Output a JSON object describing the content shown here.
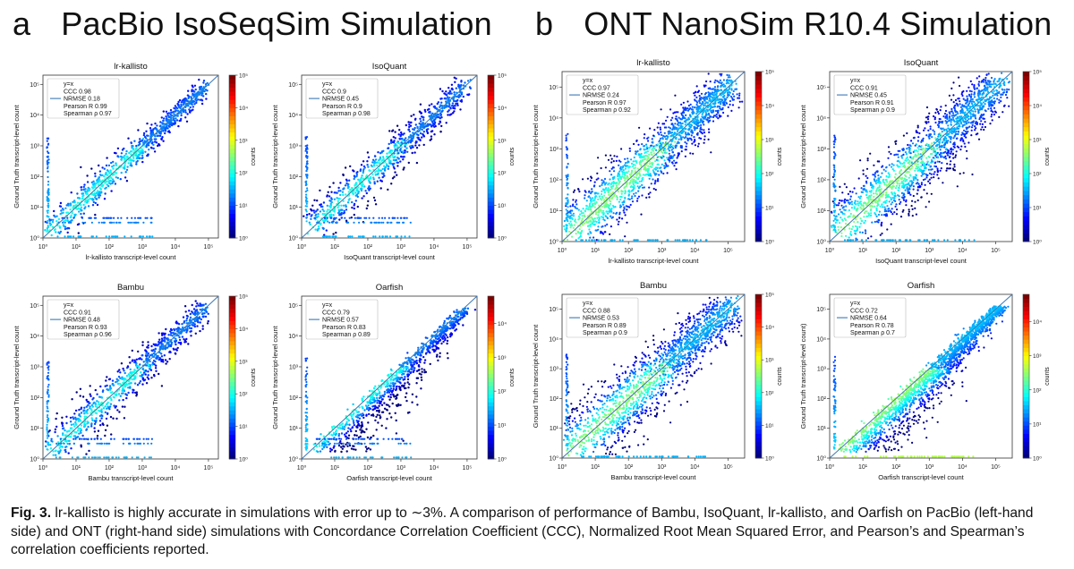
{
  "header": {
    "a": {
      "letter": "a",
      "title": "PacBio IsoSeqSim Simulation"
    },
    "b": {
      "letter": "b",
      "title": "ONT NanoSim R10.4 Simulation"
    }
  },
  "caption": {
    "label": "Fig. 3.",
    "text": " lr-kallisto is highly accurate in simulations with error up to ∼3%. A comparison of performance of Bambu, IsoQuant, lr-kallisto, and Oarfish on PacBio (left-hand side) and ONT (right-hand side) simulations with Concordance Correlation Coefficient (CCC), Normalized Root Mean Squared Error, and Pearson’s and Spearman’s correlation coefficients reported."
  },
  "colors": {
    "identity_line": "#3a78b8",
    "colormap": [
      "#00007f",
      "#0000ff",
      "#007fff",
      "#00ffff",
      "#7fff7f",
      "#ffff00",
      "#ff7f00",
      "#ff0000",
      "#7f0000"
    ]
  },
  "chart_data": [
    {
      "type": "scatter",
      "group": "PacBio IsoSeqSim Simulation",
      "title": "lr-kallisto",
      "xlabel": "lr-kallisto transcript-level count",
      "ylabel": "Ground Truth transcript-level count",
      "xscale": "log",
      "yscale": "log",
      "xlim": [
        0,
        5.3
      ],
      "ylim": [
        0,
        5.3
      ],
      "legend": [
        "y=x",
        "CCC 0.98",
        "NRMSE 0.18",
        "Pearson R 0.99",
        "Spearman ρ 0.97"
      ],
      "colorbar": {
        "label": "counts",
        "ticks": [
          "10⁰",
          "10¹",
          "10²",
          "10³",
          "10⁴",
          "10⁵"
        ],
        "range": [
          0,
          5
        ]
      },
      "xticks": [
        "10⁰",
        "10¹",
        "10²",
        "10³",
        "10⁴",
        "10⁵"
      ],
      "yticks": [
        "10⁰",
        "10¹",
        "10²",
        "10³",
        "10⁴",
        "10⁵"
      ]
    },
    {
      "type": "scatter",
      "group": "PacBio IsoSeqSim Simulation",
      "title": "IsoQuant",
      "xlabel": "IsoQuant transcript-level count",
      "ylabel": "Ground Truth transcript-level count",
      "xscale": "log",
      "yscale": "log",
      "xlim": [
        0,
        5.3
      ],
      "ylim": [
        0,
        5.3
      ],
      "legend": [
        "y=x",
        "CCC 0.9",
        "NRMSE 0.45",
        "Pearson R 0.9",
        "Spearman ρ 0.98"
      ],
      "colorbar": {
        "label": "counts",
        "ticks": [
          "10⁰",
          "10¹",
          "10²",
          "10³",
          "10⁴",
          "10⁵"
        ],
        "range": [
          0,
          5
        ]
      },
      "xticks": [
        "10⁰",
        "10¹",
        "10²",
        "10³",
        "10⁴",
        "10⁵"
      ],
      "yticks": [
        "10⁰",
        "10¹",
        "10²",
        "10³",
        "10⁴",
        "10⁵"
      ]
    },
    {
      "type": "scatter",
      "group": "PacBio IsoSeqSim Simulation",
      "title": "Bambu",
      "xlabel": "Bambu transcript-level count",
      "ylabel": "Ground Truth transcript-level count",
      "xscale": "log",
      "yscale": "log",
      "xlim": [
        0,
        5.3
      ],
      "ylim": [
        0,
        5.3
      ],
      "legend": [
        "y=x",
        "CCC 0.91",
        "NRMSE 0.48",
        "Pearson R 0.93",
        "Spearman ρ 0.96"
      ],
      "colorbar": {
        "label": "counts",
        "ticks": [
          "10⁰",
          "10¹",
          "10²",
          "10³",
          "10⁴",
          "10⁵"
        ],
        "range": [
          0,
          5
        ]
      },
      "xticks": [
        "10⁰",
        "10¹",
        "10²",
        "10³",
        "10⁴",
        "10⁵"
      ],
      "yticks": [
        "10⁰",
        "10¹",
        "10²",
        "10³",
        "10⁴",
        "10⁵"
      ]
    },
    {
      "type": "scatter",
      "group": "PacBio IsoSeqSim Simulation",
      "title": "Oarfish",
      "xlabel": "Oarfish transcript-level count",
      "ylabel": "Ground Truth transcript-level count",
      "xscale": "log",
      "yscale": "log",
      "xlim": [
        0,
        5.3
      ],
      "ylim": [
        0,
        5.3
      ],
      "legend": [
        "y=x",
        "CCC 0.79",
        "NRMSE 0.57",
        "Pearson R 0.83",
        "Spearman ρ 0.89"
      ],
      "colorbar": {
        "label": "counts",
        "ticks": [
          "10⁰",
          "10¹",
          "10²",
          "10³",
          "10⁴"
        ],
        "range": [
          0,
          4.8
        ]
      },
      "xticks": [
        "10⁰",
        "10¹",
        "10²",
        "10³",
        "10⁴",
        "10⁵"
      ],
      "yticks": [
        "10⁰",
        "10¹",
        "10²",
        "10³",
        "10⁴",
        "10⁵"
      ]
    },
    {
      "type": "scatter",
      "group": "ONT NanoSim R10.4 Simulation",
      "title": "lr-kallisto",
      "xlabel": "lr-kallisto transcript-level count",
      "ylabel": "Ground Truth transcript-level count",
      "xscale": "log",
      "yscale": "log",
      "xlim": [
        0,
        5.5
      ],
      "ylim": [
        0,
        5.5
      ],
      "legend": [
        "y=x",
        "CCC 0.97",
        "NRMSE 0.24",
        "Pearson R 0.97",
        "Spearman ρ 0.92"
      ],
      "colorbar": {
        "label": "counts",
        "ticks": [
          "10⁰",
          "10¹",
          "10²",
          "10³",
          "10⁴",
          "10⁵"
        ],
        "range": [
          0,
          5
        ]
      },
      "xticks": [
        "10⁰",
        "10¹",
        "10²",
        "10³",
        "10⁴",
        "10⁵"
      ],
      "yticks": [
        "10⁰",
        "10¹",
        "10²",
        "10³",
        "10⁴",
        "10⁵"
      ]
    },
    {
      "type": "scatter",
      "group": "ONT NanoSim R10.4 Simulation",
      "title": "IsoQuant",
      "xlabel": "IsoQuant transcript-level count",
      "ylabel": "Ground Truth transcript-level count",
      "xscale": "log",
      "yscale": "log",
      "xlim": [
        0,
        5.5
      ],
      "ylim": [
        0,
        5.5
      ],
      "legend": [
        "y=x",
        "CCC 0.91",
        "NRMSE 0.45",
        "Pearson R 0.91",
        "Spearman ρ 0.9"
      ],
      "colorbar": {
        "label": "counts",
        "ticks": [
          "10⁰",
          "10¹",
          "10²",
          "10³",
          "10⁴",
          "10⁵"
        ],
        "range": [
          0,
          5
        ]
      },
      "xticks": [
        "10⁰",
        "10¹",
        "10²",
        "10³",
        "10⁴",
        "10⁵"
      ],
      "yticks": [
        "10⁰",
        "10¹",
        "10²",
        "10³",
        "10⁴",
        "10⁵"
      ]
    },
    {
      "type": "scatter",
      "group": "ONT NanoSim R10.4 Simulation",
      "title": "Bambu",
      "xlabel": "Bambu transcript-level count",
      "ylabel": "Ground Truth transcript-level count",
      "xscale": "log",
      "yscale": "log",
      "xlim": [
        0,
        5.5
      ],
      "ylim": [
        0,
        5.5
      ],
      "legend": [
        "y=x",
        "CCC 0.88",
        "NRMSE 0.53",
        "Pearson R 0.89",
        "Spearman ρ 0.9"
      ],
      "colorbar": {
        "label": "counts",
        "ticks": [
          "10⁰",
          "10¹",
          "10²",
          "10³",
          "10⁴",
          "10⁵"
        ],
        "range": [
          0,
          5
        ]
      },
      "xticks": [
        "10⁰",
        "10¹",
        "10²",
        "10³",
        "10⁴",
        "10⁵"
      ],
      "yticks": [
        "10⁰",
        "10¹",
        "10²",
        "10³",
        "10⁴",
        "10⁵"
      ]
    },
    {
      "type": "scatter",
      "group": "ONT NanoSim R10.4 Simulation",
      "title": "Oarfish",
      "xlabel": "Oarfish transcript-level count",
      "ylabel": "Ground Truth transcript-level count)",
      "xscale": "log",
      "yscale": "log",
      "xlim": [
        0,
        5.5
      ],
      "ylim": [
        0,
        5.5
      ],
      "legend": [
        "y=x",
        "CCC 0.72",
        "NRMSE 0.64",
        "Pearson R 0.78",
        "Spearman ρ 0.7"
      ],
      "colorbar": {
        "label": "counts",
        "ticks": [
          "10⁰",
          "10¹",
          "10²",
          "10³",
          "10⁴"
        ],
        "range": [
          0,
          4.8
        ]
      },
      "xticks": [
        "10⁰",
        "10¹",
        "10²",
        "10³",
        "10⁴",
        "10⁵"
      ],
      "yticks": [
        "10⁰",
        "10¹",
        "10²",
        "10³",
        "10⁴",
        "10⁵"
      ]
    }
  ]
}
